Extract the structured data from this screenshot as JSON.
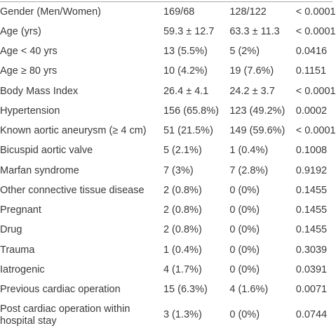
{
  "rows": [
    {
      "label": "Gender (Men/Women)",
      "g1": "169/68",
      "g2": "128/122",
      "p": "< 0.0001"
    },
    {
      "label": "Age (yrs)",
      "g1": "59.3 ± 12.7",
      "g2": "63.3 ± 11.3",
      "p": "< 0.0001"
    },
    {
      "label": "Age < 40 yrs",
      "g1": "13 (5.5%)",
      "g2": "5 (2%)",
      "p": "0.0416"
    },
    {
      "label": "Age ≥ 80 yrs",
      "g1": "10 (4.2%)",
      "g2": "19 (7.6%)",
      "p": "0.1151"
    },
    {
      "label": "Body Mass Index",
      "g1": "26.4 ± 4.1",
      "g2": "24.2 ± 3.7",
      "p": "< 0.0001"
    },
    {
      "label": "Hypertension",
      "g1": "156 (65.8%)",
      "g2": "123 (49.2%)",
      "p": "0.0002"
    },
    {
      "label": "Known aortic aneurysm (≥ 4 cm)",
      "g1": "51 (21.5%)",
      "g2": "149 (59.6%)",
      "p": "< 0.0001"
    },
    {
      "label": "Bicuspid aortic valve",
      "g1": "5 (2.1%)",
      "g2": "1 (0.4%)",
      "p": "0.1008"
    },
    {
      "label": "Marfan syndrome",
      "g1": "7 (3%)",
      "g2": "7 (2.8%)",
      "p": "0.9192"
    },
    {
      "label": "Other connective tissue disease",
      "g1": "2 (0.8%)",
      "g2": "0 (0%)",
      "p": "0.1455"
    },
    {
      "label": "Pregnant",
      "g1": "2 (0.8%)",
      "g2": "0 (0%)",
      "p": "0.1455"
    },
    {
      "label": "Drug",
      "g1": "2 (0.8%)",
      "g2": "0 (0%)",
      "p": "0.1455"
    },
    {
      "label": "Trauma",
      "g1": "1 (0.4%)",
      "g2": "0 (0%)",
      "p": "0.3039"
    },
    {
      "label": "Iatrogenic",
      "g1": "4 (1.7%)",
      "g2": "0 (0%)",
      "p": "0.0391"
    },
    {
      "label": "Previous cardiac operation",
      "g1": "15 (6.3%)",
      "g2": "4 (1.6%)",
      "p": "0.0071"
    },
    {
      "label": "Post cardiac operation within hospital stay",
      "g1": "3 (1.3%)",
      "g2": "0 (0%)",
      "p": "0.0744"
    }
  ]
}
